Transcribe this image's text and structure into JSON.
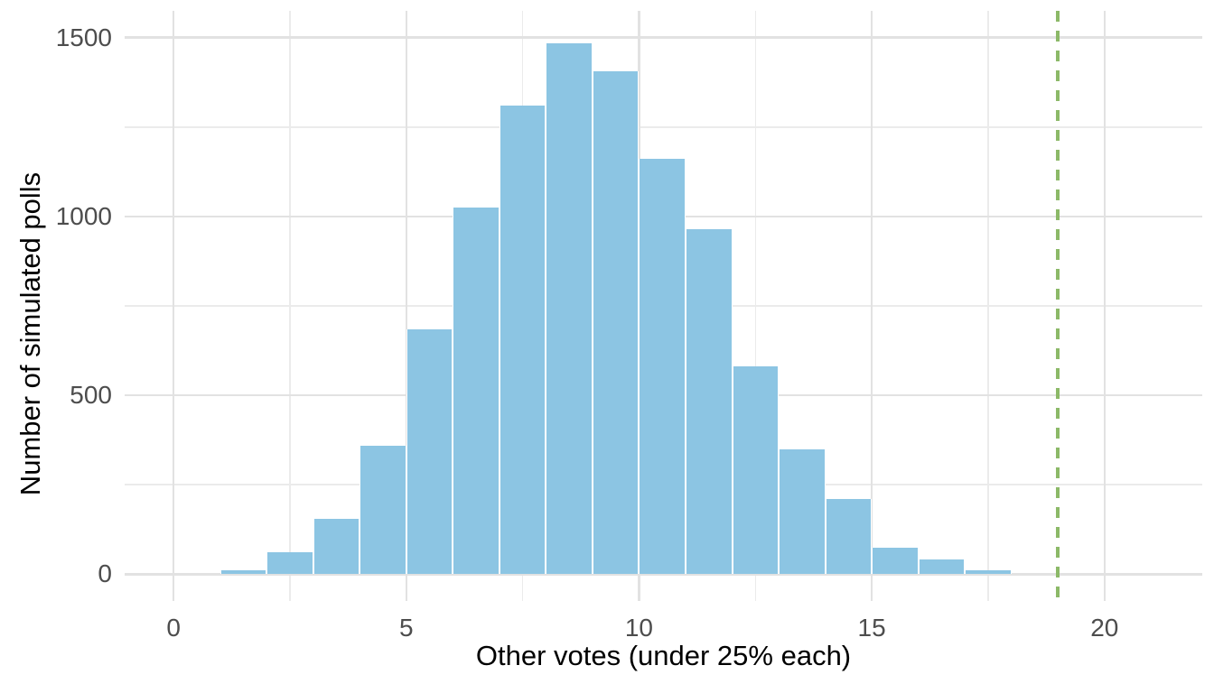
{
  "chart_data": {
    "type": "bar",
    "subtype": "histogram",
    "title": "",
    "xlabel": "Other votes (under 25% each)",
    "ylabel": "Number of simulated polls",
    "bin_width": 1,
    "bins": [
      {
        "x0": 1,
        "x1": 2,
        "count": 10
      },
      {
        "x0": 2,
        "x1": 3,
        "count": 60
      },
      {
        "x0": 3,
        "x1": 4,
        "count": 155
      },
      {
        "x0": 4,
        "x1": 5,
        "count": 360
      },
      {
        "x0": 5,
        "x1": 6,
        "count": 685
      },
      {
        "x0": 6,
        "x1": 7,
        "count": 1025
      },
      {
        "x0": 7,
        "x1": 8,
        "count": 1310
      },
      {
        "x0": 8,
        "x1": 9,
        "count": 1485
      },
      {
        "x0": 9,
        "x1": 10,
        "count": 1405
      },
      {
        "x0": 10,
        "x1": 11,
        "count": 1160
      },
      {
        "x0": 11,
        "x1": 12,
        "count": 965
      },
      {
        "x0": 12,
        "x1": 13,
        "count": 580
      },
      {
        "x0": 13,
        "x1": 14,
        "count": 350
      },
      {
        "x0": 14,
        "x1": 15,
        "count": 210
      },
      {
        "x0": 15,
        "x1": 16,
        "count": 75
      },
      {
        "x0": 16,
        "x1": 17,
        "count": 40
      },
      {
        "x0": 17,
        "x1": 18,
        "count": 10
      }
    ],
    "vline": {
      "x": 19,
      "style": "dashed"
    },
    "x_ticks": {
      "values": [
        0,
        5,
        10,
        15,
        20
      ],
      "labels": [
        "0",
        "5",
        "10",
        "15",
        "20"
      ]
    },
    "x_minor": [
      2.5,
      7.5,
      12.5,
      17.5
    ],
    "y_ticks": {
      "values": [
        0,
        500,
        1000,
        1500
      ],
      "labels": [
        "0",
        "500",
        "1000",
        "1500"
      ]
    },
    "y_minor": [
      250,
      750,
      1250
    ],
    "xlim": [
      -1.05,
      22.1
    ],
    "ylim": [
      -75,
      1575
    ],
    "grid": true,
    "legend": "none",
    "colors": {
      "bar_fill": "#8CC5E3",
      "bar_border": "#FFFFFF",
      "vline_green": "#8CB968",
      "grid_major": "#E2E2E2",
      "grid_minor": "#EBEBEB",
      "tick_label": "#4D4D4D",
      "axis_title": "#000000",
      "background": "#FFFFFF"
    }
  }
}
